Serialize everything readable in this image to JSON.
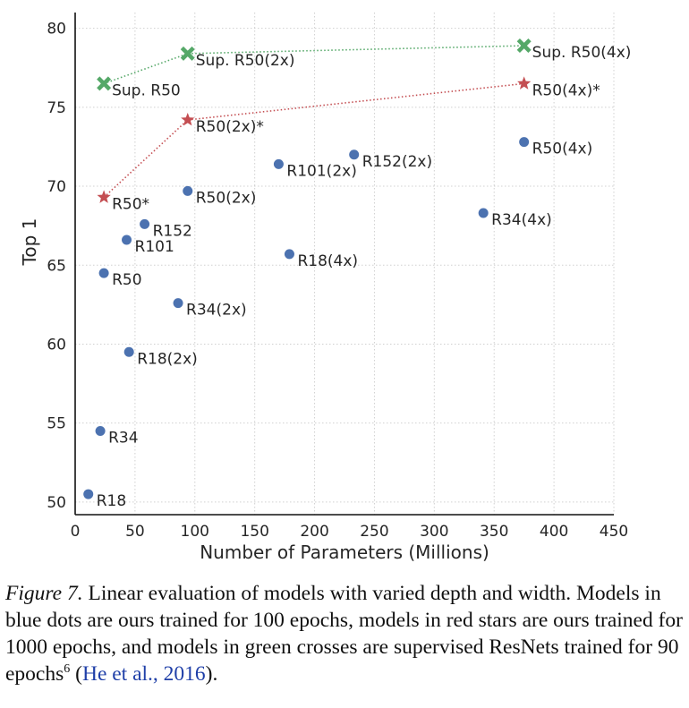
{
  "chart_data": {
    "type": "scatter",
    "xlabel": "Number of Parameters (Millions)",
    "ylabel": "Top 1",
    "xlim": [
      0,
      450
    ],
    "ylim": [
      49.2,
      81
    ],
    "x_ticks": [
      0,
      50,
      100,
      150,
      200,
      250,
      300,
      350,
      400,
      450
    ],
    "y_ticks": [
      50,
      55,
      60,
      65,
      70,
      75,
      80
    ],
    "grid": true,
    "series": [
      {
        "name": "ours, 100 epochs",
        "marker": "circle",
        "color": "#4c72b0",
        "connected": false,
        "points": [
          {
            "label": "R18",
            "x": 11,
            "y": 50.5
          },
          {
            "label": "R34",
            "x": 21,
            "y": 54.5
          },
          {
            "label": "R18(2x)",
            "x": 45,
            "y": 59.5
          },
          {
            "label": "R50",
            "x": 24,
            "y": 64.5
          },
          {
            "label": "R101",
            "x": 43,
            "y": 66.6
          },
          {
            "label": "R152",
            "x": 58,
            "y": 67.6
          },
          {
            "label": "R34(2x)",
            "x": 86,
            "y": 62.6
          },
          {
            "label": "R50(2x)",
            "x": 94,
            "y": 69.7
          },
          {
            "label": "R18(4x)",
            "x": 179,
            "y": 65.7
          },
          {
            "label": "R101(2x)",
            "x": 170,
            "y": 71.4
          },
          {
            "label": "R152(2x)",
            "x": 233,
            "y": 72.0
          },
          {
            "label": "R34(4x)",
            "x": 341,
            "y": 68.3
          },
          {
            "label": "R50(4x)",
            "x": 375,
            "y": 72.8
          }
        ]
      },
      {
        "name": "ours, 1000 epochs",
        "marker": "star",
        "color": "#c44e52",
        "connected": true,
        "points": [
          {
            "label": "R50*",
            "x": 24,
            "y": 69.3
          },
          {
            "label": "R50(2x)*",
            "x": 94,
            "y": 74.2
          },
          {
            "label": "R50(4x)*",
            "x": 375,
            "y": 76.5
          }
        ]
      },
      {
        "name": "supervised, 90 epochs",
        "marker": "cross",
        "color": "#55a868",
        "connected": true,
        "points": [
          {
            "label": "Sup. R50",
            "x": 24,
            "y": 76.5
          },
          {
            "label": "Sup. R50(2x)",
            "x": 94,
            "y": 78.4
          },
          {
            "label": "Sup. R50(4x)",
            "x": 375,
            "y": 78.9
          }
        ]
      }
    ]
  },
  "caption": {
    "figure_label": "Figure 7.",
    "text": " Linear evaluation of models with varied depth and width. Models in blue dots are ours trained for 100 epochs, models in red stars are ours trained for 1000 epochs, and models in green crosses are supervised ResNets trained for 90 epochs",
    "footnote": "6",
    "cite_open": " (",
    "cite_link": "He et al., 2016",
    "cite_close": ")."
  }
}
